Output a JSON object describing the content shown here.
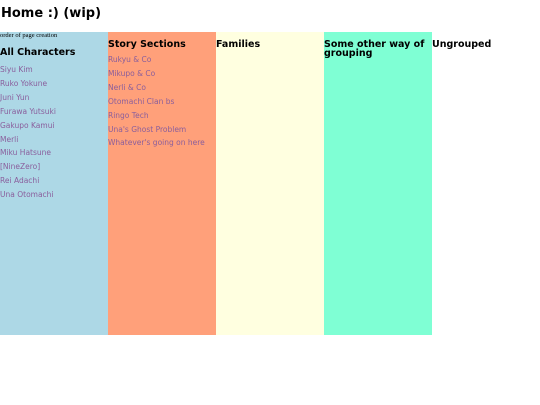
{
  "header": {
    "title": "Home :) (wip)"
  },
  "columns": [
    {
      "note": "order of page creation",
      "heading": "All Characters",
      "links": [
        "Siyu Kim",
        "Ruko Yokune",
        "Juni Yun",
        "Furawa Yutsuki",
        "Gakupo Kamui",
        "Merli",
        "Miku Hatsune",
        "[NineZero]",
        "Rei Adachi",
        "Una Otomachi"
      ]
    },
    {
      "heading": "Story Sections",
      "links": [
        "Rukyu & Co",
        "Mikupo & Co",
        "Nerli & Co",
        "Otomachi Clan bs",
        "Ringo Tech",
        "Una's Ghost Problem",
        "Whatever's going on here"
      ]
    },
    {
      "heading": "Families",
      "links": []
    },
    {
      "heading": "Some other way of grouping",
      "links": []
    },
    {
      "heading": "Ungrouped",
      "links": []
    }
  ]
}
